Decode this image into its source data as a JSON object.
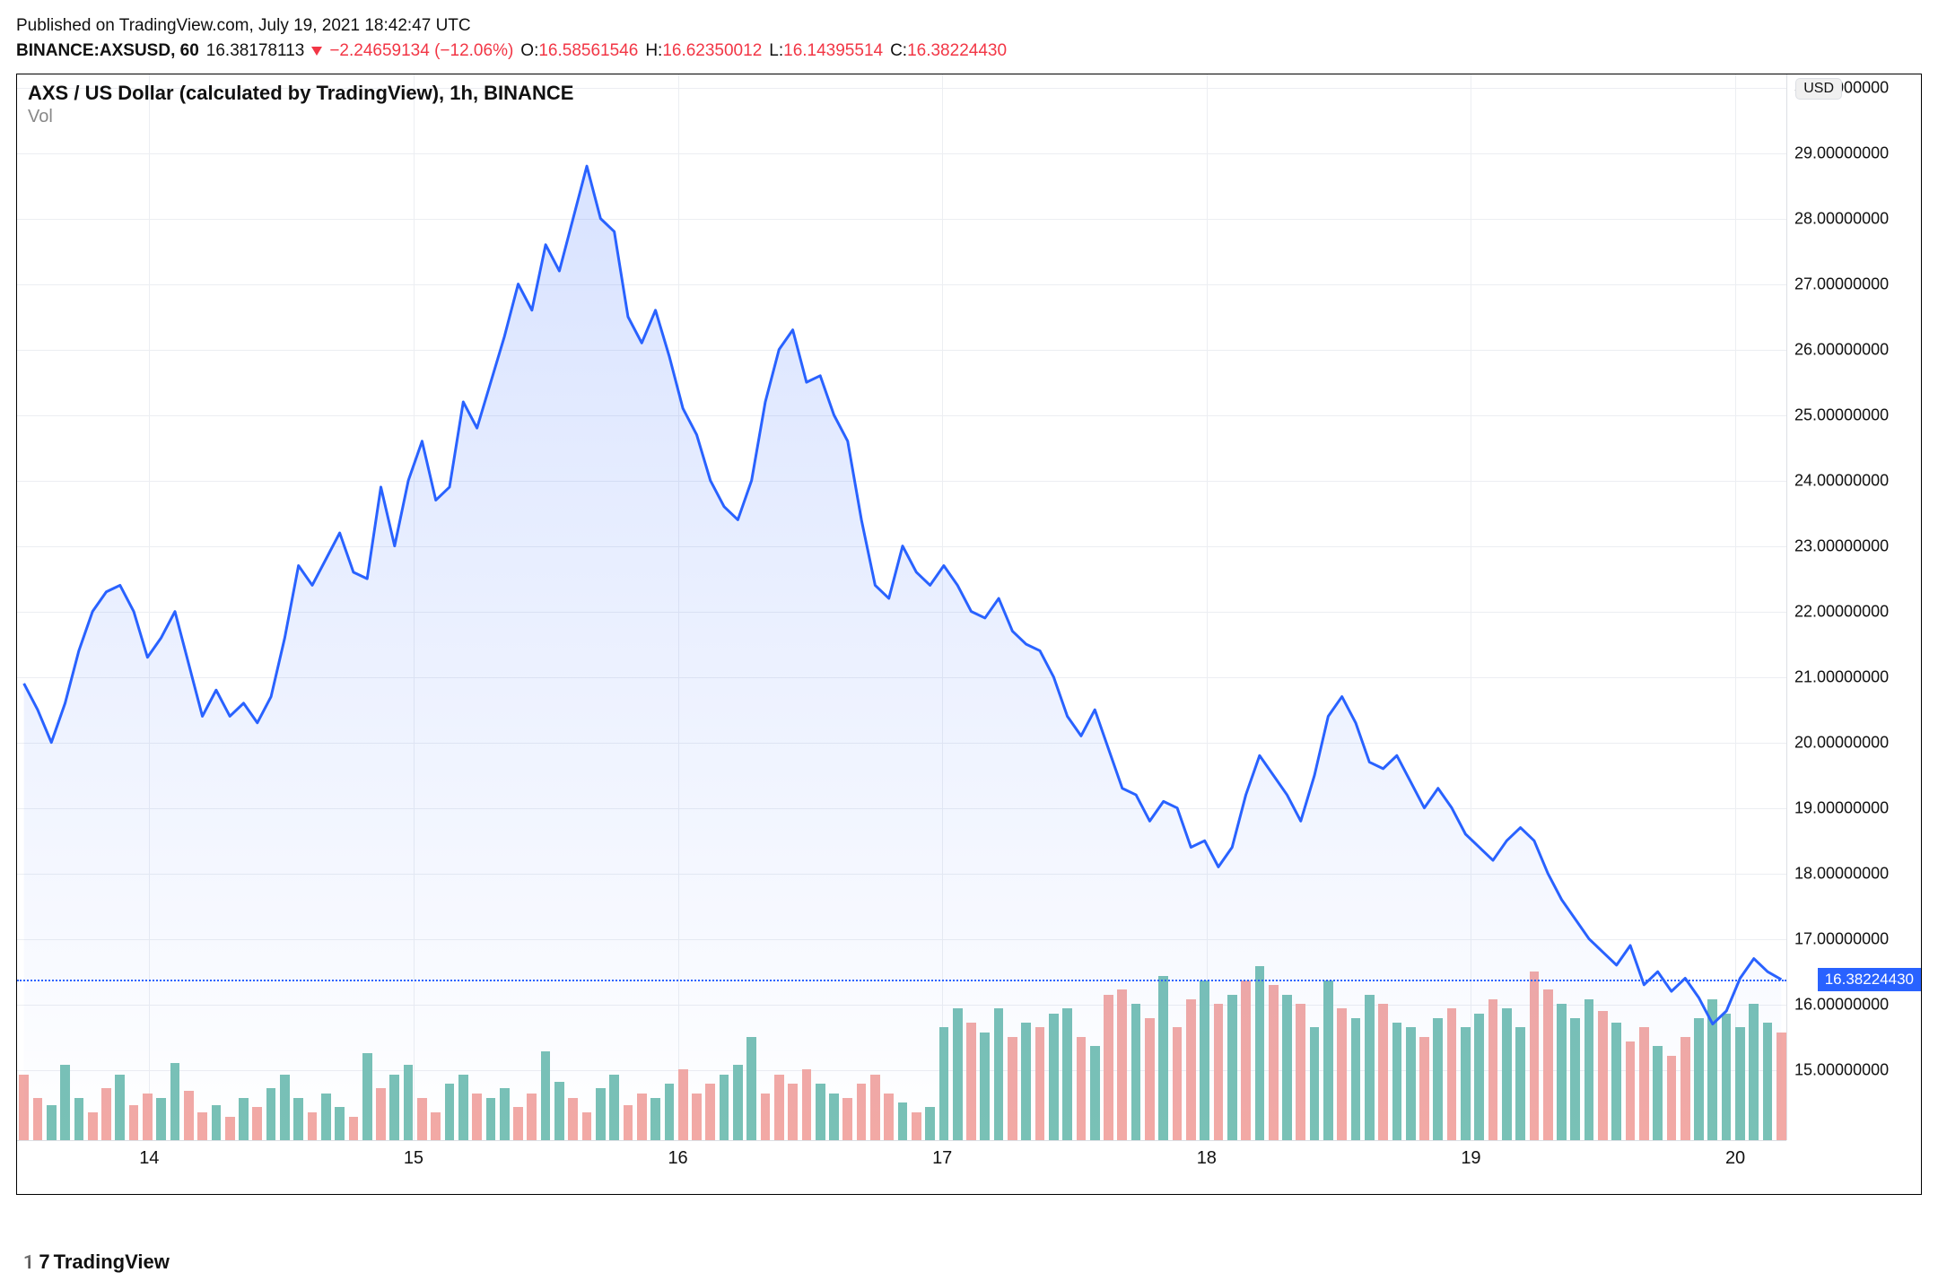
{
  "header": {
    "published_text": "Published on TradingView.com, July 19, 2021 18:42:47 UTC",
    "symbol": "BINANCE:AXSUSD",
    "interval": "60",
    "price": "16.38178113",
    "change": "−2.24659134",
    "change_pct": "(−12.06%)",
    "ohlc": {
      "O_label": "O:",
      "O": "16.58561546",
      "H_label": "H:",
      "H": "16.62350012",
      "L_label": "L:",
      "L": "16.14395514",
      "C_label": "C:",
      "C": "16.38224430"
    }
  },
  "chart": {
    "title": "AXS / US Dollar (calculated by TradingView), 1h, BINANCE",
    "vol_label": "Vol",
    "currency_badge": "USD",
    "y_axis": {
      "min": 13.9,
      "max": 30.2,
      "ticks": [
        "30.00000000",
        "29.00000000",
        "28.00000000",
        "27.00000000",
        "26.00000000",
        "25.00000000",
        "24.00000000",
        "23.00000000",
        "22.00000000",
        "21.00000000",
        "20.00000000",
        "19.00000000",
        "18.00000000",
        "17.00000000",
        "16.00000000",
        "15.00000000"
      ],
      "tick_values": [
        30,
        29,
        28,
        27,
        26,
        25,
        24,
        23,
        22,
        21,
        20,
        19,
        18,
        17,
        16,
        15
      ]
    },
    "x_axis": {
      "min": 13.5,
      "max": 20.2,
      "ticks": [
        "14",
        "15",
        "16",
        "17",
        "18",
        "19",
        "20"
      ],
      "tick_values": [
        14,
        15,
        16,
        17,
        18,
        19,
        20
      ]
    },
    "current_price_line": 16.3822443,
    "price_tag": "16.38224430",
    "line_color": "#2962ff",
    "area_fill_top": "rgba(41,98,255,0.18)",
    "area_fill_bottom": "rgba(41,98,255,0.00)",
    "grid_color": "#eceef2",
    "vol_up_color": "#79c1b6",
    "vol_down_color": "#f2a9a5",
    "vol_max": 100,
    "price_series": [
      20.9,
      20.5,
      20.0,
      20.6,
      21.4,
      22.0,
      22.3,
      22.4,
      22.0,
      21.3,
      21.6,
      22.0,
      21.2,
      20.4,
      20.8,
      20.4,
      20.6,
      20.3,
      20.7,
      21.6,
      22.7,
      22.4,
      22.8,
      23.2,
      22.6,
      22.5,
      23.9,
      23.0,
      24.0,
      24.6,
      23.7,
      23.9,
      25.2,
      24.8,
      25.5,
      26.2,
      27.0,
      26.6,
      27.6,
      27.2,
      28.0,
      28.8,
      28.0,
      27.8,
      26.5,
      26.1,
      26.6,
      25.9,
      25.1,
      24.7,
      24.0,
      23.6,
      23.4,
      24.0,
      25.2,
      26.0,
      26.3,
      25.5,
      25.6,
      25.0,
      24.6,
      23.4,
      22.4,
      22.2,
      23.0,
      22.6,
      22.4,
      22.7,
      22.4,
      22.0,
      21.9,
      22.2,
      21.7,
      21.5,
      21.4,
      21.0,
      20.4,
      20.1,
      20.5,
      19.9,
      19.3,
      19.2,
      18.8,
      19.1,
      19.0,
      18.4,
      18.5,
      18.1,
      18.4,
      19.2,
      19.8,
      19.5,
      19.2,
      18.8,
      19.5,
      20.4,
      20.7,
      20.3,
      19.7,
      19.6,
      19.8,
      19.4,
      19.0,
      19.3,
      19.0,
      18.6,
      18.4,
      18.2,
      18.5,
      18.7,
      18.5,
      18.0,
      17.6,
      17.3,
      17.0,
      16.8,
      16.6,
      16.9,
      16.3,
      16.5,
      16.2,
      16.4,
      16.1,
      15.7,
      15.9,
      16.4,
      16.7,
      16.5,
      16.38
    ],
    "volume_series": [
      {
        "v": 28,
        "u": false
      },
      {
        "v": 18,
        "u": false
      },
      {
        "v": 15,
        "u": true
      },
      {
        "v": 32,
        "u": true
      },
      {
        "v": 18,
        "u": true
      },
      {
        "v": 12,
        "u": false
      },
      {
        "v": 22,
        "u": false
      },
      {
        "v": 28,
        "u": true
      },
      {
        "v": 15,
        "u": false
      },
      {
        "v": 20,
        "u": false
      },
      {
        "v": 18,
        "u": true
      },
      {
        "v": 33,
        "u": true
      },
      {
        "v": 21,
        "u": false
      },
      {
        "v": 12,
        "u": false
      },
      {
        "v": 15,
        "u": true
      },
      {
        "v": 10,
        "u": false
      },
      {
        "v": 18,
        "u": true
      },
      {
        "v": 14,
        "u": false
      },
      {
        "v": 22,
        "u": true
      },
      {
        "v": 28,
        "u": true
      },
      {
        "v": 18,
        "u": true
      },
      {
        "v": 12,
        "u": false
      },
      {
        "v": 20,
        "u": true
      },
      {
        "v": 14,
        "u": true
      },
      {
        "v": 10,
        "u": false
      },
      {
        "v": 37,
        "u": true
      },
      {
        "v": 22,
        "u": false
      },
      {
        "v": 28,
        "u": true
      },
      {
        "v": 32,
        "u": true
      },
      {
        "v": 18,
        "u": false
      },
      {
        "v": 12,
        "u": false
      },
      {
        "v": 24,
        "u": true
      },
      {
        "v": 28,
        "u": true
      },
      {
        "v": 20,
        "u": false
      },
      {
        "v": 18,
        "u": true
      },
      {
        "v": 22,
        "u": true
      },
      {
        "v": 14,
        "u": false
      },
      {
        "v": 20,
        "u": false
      },
      {
        "v": 38,
        "u": true
      },
      {
        "v": 25,
        "u": true
      },
      {
        "v": 18,
        "u": false
      },
      {
        "v": 12,
        "u": false
      },
      {
        "v": 22,
        "u": true
      },
      {
        "v": 28,
        "u": true
      },
      {
        "v": 15,
        "u": false
      },
      {
        "v": 20,
        "u": false
      },
      {
        "v": 18,
        "u": true
      },
      {
        "v": 24,
        "u": true
      },
      {
        "v": 30,
        "u": false
      },
      {
        "v": 20,
        "u": false
      },
      {
        "v": 24,
        "u": false
      },
      {
        "v": 28,
        "u": true
      },
      {
        "v": 32,
        "u": true
      },
      {
        "v": 44,
        "u": true
      },
      {
        "v": 20,
        "u": false
      },
      {
        "v": 28,
        "u": false
      },
      {
        "v": 24,
        "u": false
      },
      {
        "v": 30,
        "u": false
      },
      {
        "v": 24,
        "u": true
      },
      {
        "v": 20,
        "u": true
      },
      {
        "v": 18,
        "u": false
      },
      {
        "v": 24,
        "u": false
      },
      {
        "v": 28,
        "u": false
      },
      {
        "v": 20,
        "u": false
      },
      {
        "v": 16,
        "u": true
      },
      {
        "v": 12,
        "u": false
      },
      {
        "v": 14,
        "u": true
      },
      {
        "v": 48,
        "u": true
      },
      {
        "v": 56,
        "u": true
      },
      {
        "v": 50,
        "u": false
      },
      {
        "v": 46,
        "u": true
      },
      {
        "v": 56,
        "u": true
      },
      {
        "v": 44,
        "u": false
      },
      {
        "v": 50,
        "u": true
      },
      {
        "v": 48,
        "u": false
      },
      {
        "v": 54,
        "u": true
      },
      {
        "v": 56,
        "u": true
      },
      {
        "v": 44,
        "u": false
      },
      {
        "v": 40,
        "u": true
      },
      {
        "v": 62,
        "u": false
      },
      {
        "v": 64,
        "u": false
      },
      {
        "v": 58,
        "u": true
      },
      {
        "v": 52,
        "u": false
      },
      {
        "v": 70,
        "u": true
      },
      {
        "v": 48,
        "u": false
      },
      {
        "v": 60,
        "u": false
      },
      {
        "v": 68,
        "u": true
      },
      {
        "v": 58,
        "u": false
      },
      {
        "v": 62,
        "u": true
      },
      {
        "v": 68,
        "u": false
      },
      {
        "v": 74,
        "u": true
      },
      {
        "v": 66,
        "u": false
      },
      {
        "v": 62,
        "u": true
      },
      {
        "v": 58,
        "u": false
      },
      {
        "v": 48,
        "u": true
      },
      {
        "v": 68,
        "u": true
      },
      {
        "v": 56,
        "u": false
      },
      {
        "v": 52,
        "u": true
      },
      {
        "v": 62,
        "u": true
      },
      {
        "v": 58,
        "u": false
      },
      {
        "v": 50,
        "u": true
      },
      {
        "v": 48,
        "u": true
      },
      {
        "v": 44,
        "u": false
      },
      {
        "v": 52,
        "u": true
      },
      {
        "v": 56,
        "u": false
      },
      {
        "v": 48,
        "u": true
      },
      {
        "v": 54,
        "u": true
      },
      {
        "v": 60,
        "u": false
      },
      {
        "v": 56,
        "u": true
      },
      {
        "v": 48,
        "u": true
      },
      {
        "v": 72,
        "u": false
      },
      {
        "v": 64,
        "u": false
      },
      {
        "v": 58,
        "u": true
      },
      {
        "v": 52,
        "u": true
      },
      {
        "v": 60,
        "u": true
      },
      {
        "v": 55,
        "u": false
      },
      {
        "v": 50,
        "u": true
      },
      {
        "v": 42,
        "u": false
      },
      {
        "v": 48,
        "u": false
      },
      {
        "v": 40,
        "u": true
      },
      {
        "v": 36,
        "u": false
      },
      {
        "v": 44,
        "u": false
      },
      {
        "v": 52,
        "u": true
      },
      {
        "v": 60,
        "u": true
      },
      {
        "v": 54,
        "u": true
      },
      {
        "v": 48,
        "u": true
      },
      {
        "v": 58,
        "u": true
      },
      {
        "v": 50,
        "u": true
      },
      {
        "v": 46,
        "u": false
      }
    ]
  },
  "footer": {
    "brand": "TradingView"
  }
}
